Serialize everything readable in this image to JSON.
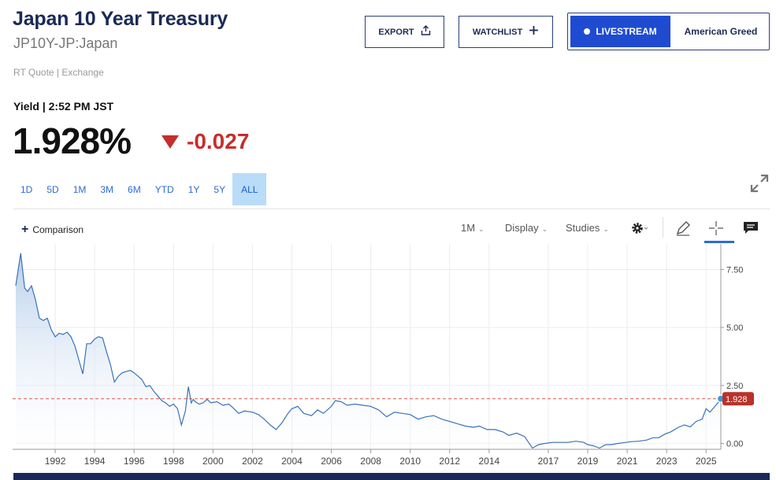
{
  "header": {
    "title": "Japan 10 Year Treasury",
    "symbol": "JP10Y-JP:Japan",
    "quote_source": "RT Quote | Exchange"
  },
  "actions": {
    "export_label": "EXPORT",
    "watchlist_label": "WATCHLIST",
    "livestream_label": "LIVESTREAM",
    "show_label": "American Greed"
  },
  "quote": {
    "yield_label": "Yield | 2:52 PM JST",
    "price": "1.928%",
    "change": "-0.027",
    "change_color": "#c72d2d"
  },
  "ranges": [
    "1D",
    "5D",
    "1M",
    "3M",
    "6M",
    "YTD",
    "1Y",
    "5Y",
    "ALL"
  ],
  "active_range": "ALL",
  "toolbar": {
    "comparison_label": "Comparison",
    "interval_label": "1M",
    "display_label": "Display",
    "studies_label": "Studies",
    "icons": [
      "gear-icon",
      "pencil-icon",
      "crosshair-icon",
      "comment-icon"
    ]
  },
  "colors": {
    "brand_navy": "#1b2a55",
    "accent_blue": "#2d6bd6",
    "line": "#3a72b8",
    "area": "#c9dbf0",
    "last_price_marker": "#c0392b"
  },
  "chart_data": {
    "type": "area",
    "title": "",
    "xlabel": "",
    "ylabel": "",
    "x_ticks": [
      "1992",
      "1994",
      "1996",
      "1998",
      "2000",
      "2002",
      "2004",
      "2006",
      "2008",
      "2010",
      "2012",
      "2014",
      "2017",
      "2019",
      "2021",
      "2023",
      "2025"
    ],
    "y_ticks": [
      "7.50",
      "5.00",
      "2.50",
      "0.00"
    ],
    "xlim": [
      1990.0,
      2025.75
    ],
    "ylim": [
      -0.25,
      8.6
    ],
    "grid": true,
    "last_value": "1.928",
    "last_value_line": 1.928,
    "series": [
      {
        "x": [
          1990.0,
          1990.25,
          1990.45,
          1990.6,
          1990.8,
          1991.0,
          1991.2,
          1991.4,
          1991.6,
          1991.8,
          1992.0,
          1992.2,
          1992.4,
          1992.6,
          1992.8,
          1993.0,
          1993.2,
          1993.4,
          1993.6,
          1993.8,
          1994.0,
          1994.2,
          1994.4,
          1994.6,
          1994.8,
          1995.0,
          1995.2,
          1995.4,
          1995.6,
          1995.8,
          1996.0,
          1996.2,
          1996.4,
          1996.6,
          1996.8,
          1997.0,
          1997.2,
          1997.4,
          1997.6,
          1997.8,
          1998.0,
          1998.2,
          1998.4,
          1998.6,
          1998.75,
          1998.9,
          1999.0,
          1999.1,
          1999.3,
          1999.5,
          1999.7,
          1999.9,
          2000.2,
          2000.5,
          2000.8,
          2001.0,
          2001.3,
          2001.6,
          2002.0,
          2002.3,
          2002.6,
          2002.9,
          2003.2,
          2003.5,
          2003.8,
          2004.0,
          2004.3,
          2004.6,
          2005.0,
          2005.3,
          2005.6,
          2006.0,
          2006.2,
          2006.5,
          2006.8,
          2007.2,
          2007.6,
          2008.0,
          2008.4,
          2008.8,
          2009.2,
          2009.6,
          2010.0,
          2010.4,
          2010.8,
          2011.2,
          2011.6,
          2012.0,
          2012.4,
          2012.8,
          2013.2,
          2013.5,
          2013.9,
          2014.3,
          2014.7,
          2015.0,
          2015.4,
          2015.8,
          2016.0,
          2016.2,
          2016.5,
          2016.8,
          2017.2,
          2017.6,
          2018.0,
          2018.4,
          2018.8,
          2019.0,
          2019.3,
          2019.6,
          2019.9,
          2020.2,
          2020.5,
          2020.8,
          2021.2,
          2021.6,
          2022.0,
          2022.3,
          2022.6,
          2022.9,
          2023.2,
          2023.6,
          2023.9,
          2024.2,
          2024.5,
          2024.8,
          2025.0,
          2025.2,
          2025.4,
          2025.6,
          2025.75
        ],
        "values": [
          6.8,
          8.2,
          6.7,
          6.55,
          6.8,
          6.2,
          5.4,
          5.3,
          5.4,
          4.9,
          4.6,
          4.75,
          4.7,
          4.8,
          4.6,
          4.2,
          3.6,
          3.0,
          4.3,
          4.3,
          4.5,
          4.6,
          4.55,
          3.95,
          3.4,
          2.65,
          2.9,
          3.05,
          3.1,
          3.15,
          3.05,
          2.9,
          2.75,
          2.45,
          2.5,
          2.25,
          2.05,
          1.85,
          1.75,
          1.6,
          1.7,
          1.5,
          0.8,
          1.4,
          2.45,
          1.75,
          1.9,
          1.8,
          1.7,
          1.75,
          1.9,
          1.75,
          1.8,
          1.65,
          1.7,
          1.55,
          1.3,
          1.4,
          1.35,
          1.25,
          1.05,
          0.8,
          0.6,
          0.9,
          1.3,
          1.5,
          1.6,
          1.3,
          1.2,
          1.45,
          1.3,
          1.6,
          1.85,
          1.8,
          1.65,
          1.7,
          1.65,
          1.6,
          1.45,
          1.15,
          1.35,
          1.3,
          1.25,
          1.05,
          1.15,
          1.2,
          1.05,
          0.95,
          0.85,
          0.75,
          0.7,
          0.75,
          0.6,
          0.6,
          0.5,
          0.35,
          0.45,
          0.3,
          0.05,
          -0.2,
          -0.05,
          0.0,
          0.05,
          0.05,
          0.05,
          0.1,
          0.05,
          -0.05,
          -0.1,
          -0.2,
          -0.05,
          -0.05,
          0.0,
          0.03,
          0.08,
          0.1,
          0.15,
          0.25,
          0.25,
          0.4,
          0.5,
          0.7,
          0.8,
          0.72,
          0.95,
          1.05,
          1.5,
          1.35,
          1.55,
          1.75,
          1.928
        ]
      }
    ]
  }
}
